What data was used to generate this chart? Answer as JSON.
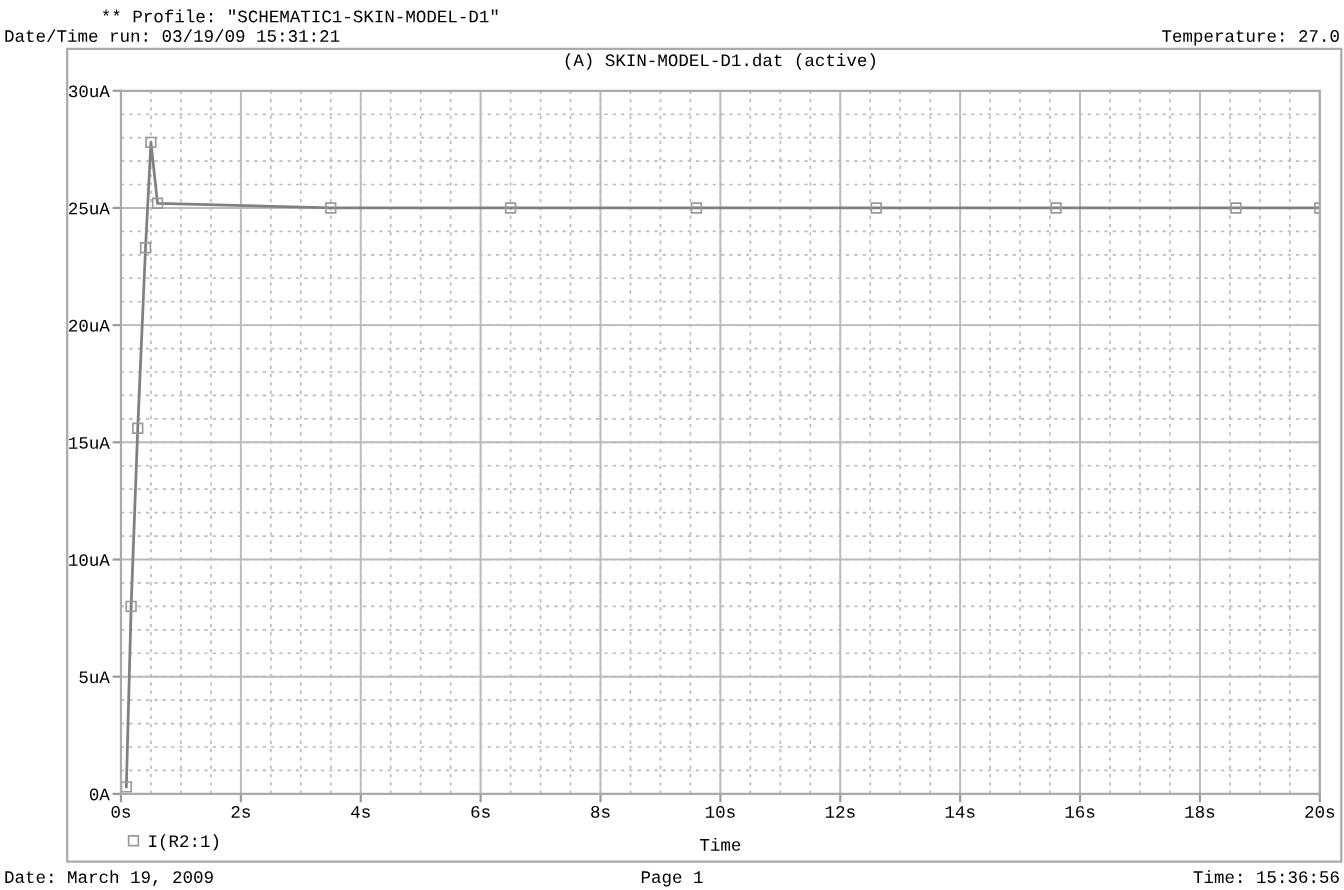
{
  "chart_data": {
    "type": "line",
    "title": "** Profile: \"SCHEMATIC1-SKIN-MODEL-D1\"",
    "subtitle": "(A) SKIN-MODEL-D1.dat (active)",
    "xlabel": "Time",
    "annotations": [
      "Date/Time run: 03/19/09 15:31:21",
      "Temperature: 27.0",
      "Date: March 19, 2009",
      "Page 1",
      "Time: 15:36:56"
    ],
    "series": [
      {
        "name": "I(R2:1)",
        "color": "#808080",
        "x": [
          0.09,
          0.17,
          0.28,
          0.41,
          0.5,
          0.61,
          3.5,
          6.5,
          9.6,
          12.6,
          15.6,
          18.6,
          20
        ],
        "values": [
          0.3,
          8,
          15.6,
          23.3,
          27.8,
          25.2,
          25,
          25,
          25,
          25,
          25,
          25,
          25
        ]
      }
    ],
    "xlim": [
      0,
      20
    ],
    "xticks": [
      {
        "value": 0,
        "label": "0s"
      },
      {
        "value": 2,
        "label": "2s"
      },
      {
        "value": 4,
        "label": "4s"
      },
      {
        "value": 6,
        "label": "6s"
      },
      {
        "value": 8,
        "label": "8s"
      },
      {
        "value": 10,
        "label": "10s"
      },
      {
        "value": 12,
        "label": "12s"
      },
      {
        "value": 14,
        "label": "14s"
      },
      {
        "value": 16,
        "label": "16s"
      },
      {
        "value": 18,
        "label": "18s"
      },
      {
        "value": 20,
        "label": "20s"
      }
    ],
    "ylim": [
      0,
      30
    ],
    "yticks": [
      {
        "value": 0,
        "label": "0A"
      },
      {
        "value": 5,
        "label": "5uA"
      },
      {
        "value": 10,
        "label": "10uA"
      },
      {
        "value": 15,
        "label": "15uA"
      },
      {
        "value": 20,
        "label": "20uA"
      },
      {
        "value": 25,
        "label": "25uA"
      },
      {
        "value": 30,
        "label": "30uA"
      }
    ],
    "grid": true,
    "legend": "bottom left",
    "marker": "square",
    "line_style": "solid"
  }
}
